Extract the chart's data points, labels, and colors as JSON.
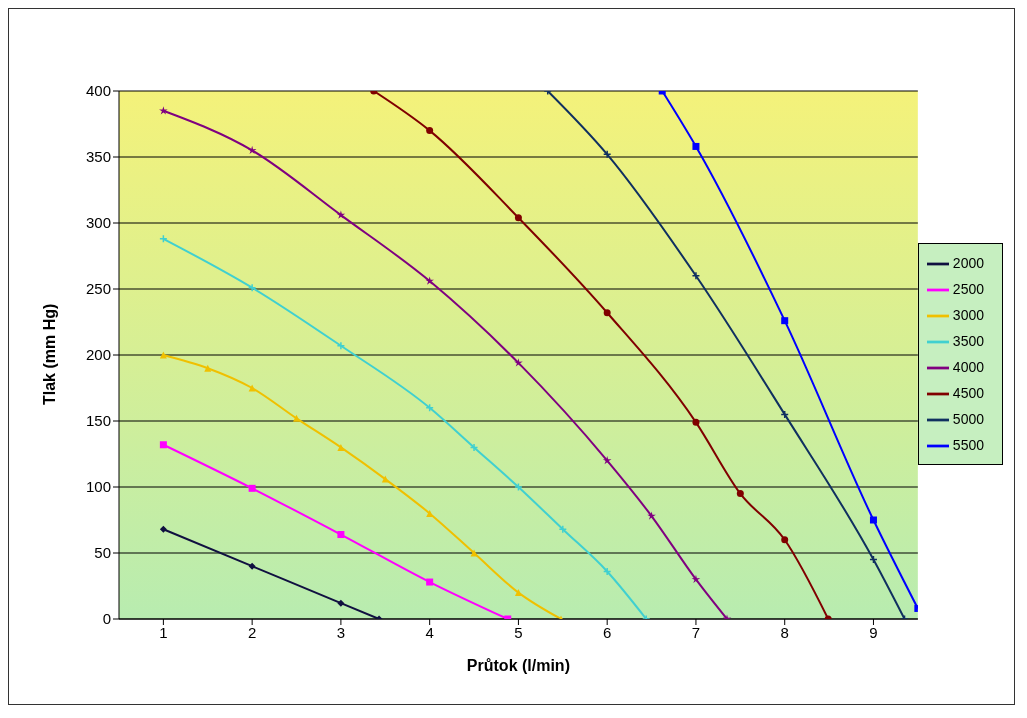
{
  "chart_data": {
    "type": "line",
    "xlabel": "Průtok (l/min)",
    "ylabel": "Tlak (mm Hg)",
    "xlim": [
      0.5,
      9.5
    ],
    "xticks": [
      1,
      2,
      3,
      4,
      5,
      6,
      7,
      8,
      9
    ],
    "ylim": [
      0,
      400
    ],
    "yticks": [
      0,
      50,
      100,
      150,
      200,
      250,
      300,
      350,
      400
    ],
    "grid": "y",
    "legend": "right",
    "series": [
      {
        "name": "2000",
        "color": "#101040",
        "marker": "diamond",
        "x": [
          1,
          2,
          3,
          3.43
        ],
        "values": [
          68,
          40,
          12,
          0
        ]
      },
      {
        "name": "2500",
        "color": "#ff00ff",
        "marker": "square",
        "x": [
          1,
          2,
          3,
          4,
          4.88
        ],
        "values": [
          132,
          99,
          64,
          28,
          0
        ]
      },
      {
        "name": "3000",
        "color": "#f0c000",
        "marker": "triangle",
        "x": [
          1,
          1.5,
          2,
          2.5,
          3,
          3.5,
          4,
          4.5,
          5,
          5.48
        ],
        "values": [
          200,
          190,
          175,
          152,
          130,
          106,
          80,
          50,
          20,
          0
        ]
      },
      {
        "name": "3500",
        "color": "#40d0d0",
        "marker": "cross",
        "x": [
          1,
          2,
          3,
          4,
          4.5,
          5,
          5.5,
          6,
          6.44
        ],
        "values": [
          288,
          251,
          207,
          160,
          130,
          100,
          68,
          36,
          0
        ]
      },
      {
        "name": "4000",
        "color": "#800080",
        "marker": "star",
        "x": [
          1,
          2,
          3,
          4,
          5,
          6,
          6.5,
          7,
          7.35
        ],
        "values": [
          385,
          355,
          306,
          256,
          194,
          120,
          78,
          30,
          0
        ]
      },
      {
        "name": "4500",
        "color": "#800000",
        "marker": "circle",
        "x": [
          3.37,
          4,
          5,
          6,
          7,
          7.5,
          8,
          8.49
        ],
        "values": [
          400,
          370,
          304,
          232,
          149,
          95,
          60,
          0
        ]
      },
      {
        "name": "5000",
        "color": "#103060",
        "marker": "cross",
        "x": [
          5.33,
          6,
          7,
          8,
          9,
          9.35
        ],
        "values": [
          400,
          352,
          260,
          155,
          45,
          0
        ]
      },
      {
        "name": "5500",
        "color": "#0000ff",
        "marker": "square",
        "x": [
          6.62,
          7,
          8,
          9,
          9.5
        ],
        "values": [
          400,
          358,
          226,
          75,
          8
        ]
      }
    ]
  }
}
